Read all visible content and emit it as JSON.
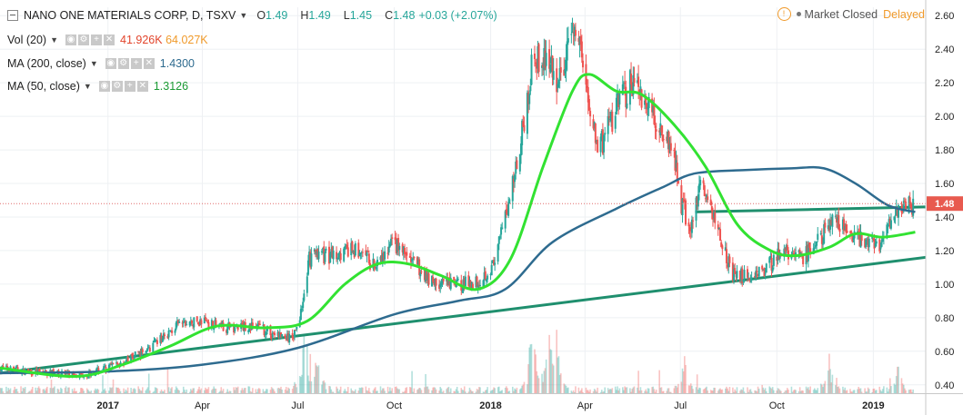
{
  "header": {
    "symbol_title": "NANO ONE MATERIALS CORP, D, TSXV",
    "ohlc": {
      "o_label": "O",
      "o_value": "1.49",
      "h_label": "H",
      "h_value": "1.49",
      "l_label": "L",
      "l_value": "1.45",
      "c_label": "C",
      "c_value": "1.48",
      "change": "+0.03 (+2.07%)"
    },
    "market_status": "Market Closed",
    "data_status": "Delayed"
  },
  "indicators": [
    {
      "label": "Vol (20)",
      "values": [
        "41.926K",
        "64.027K"
      ],
      "colors": [
        "#e2452c",
        "#f09a2b"
      ]
    },
    {
      "label": "MA (200, close)",
      "values": [
        "1.4300"
      ],
      "colors": [
        "#2e6b8f"
      ]
    },
    {
      "label": "MA (50, close)",
      "values": [
        "1.3126"
      ],
      "colors": [
        "#1a9a33"
      ]
    }
  ],
  "chart_data": {
    "type": "candlestick",
    "last_price_label": "1.48",
    "y_ticks": [
      "2.60",
      "2.40",
      "2.20",
      "2.00",
      "1.80",
      "1.60",
      "1.40",
      "1.20",
      "1.00",
      "0.80",
      "0.60",
      "0.40"
    ],
    "ylim": [
      0.35,
      2.65
    ],
    "x_ticks": [
      {
        "label": "2017",
        "bold": true,
        "date": "2017-01-01"
      },
      {
        "label": "Apr",
        "bold": false,
        "date": "2017-04-01"
      },
      {
        "label": "Jul",
        "bold": false,
        "date": "2017-07-01"
      },
      {
        "label": "Oct",
        "bold": false,
        "date": "2017-10-01"
      },
      {
        "label": "2018",
        "bold": true,
        "date": "2018-01-01"
      },
      {
        "label": "Apr",
        "bold": false,
        "date": "2018-04-01"
      },
      {
        "label": "Jul",
        "bold": false,
        "date": "2018-07-01"
      },
      {
        "label": "Oct",
        "bold": false,
        "date": "2018-10-01"
      },
      {
        "label": "2019",
        "bold": true,
        "date": "2019-01-01"
      }
    ],
    "xlim": [
      "2016-09-20",
      "2019-02-20"
    ],
    "price_path": [
      [
        "2016-09-20",
        0.5
      ],
      [
        "2016-10-15",
        0.48
      ],
      [
        "2016-11-10",
        0.47
      ],
      [
        "2016-12-10",
        0.46
      ],
      [
        "2017-01-10",
        0.52
      ],
      [
        "2017-02-10",
        0.62
      ],
      [
        "2017-03-10",
        0.76
      ],
      [
        "2017-04-05",
        0.78
      ],
      [
        "2017-04-25",
        0.74
      ],
      [
        "2017-05-20",
        0.75
      ],
      [
        "2017-06-10",
        0.7
      ],
      [
        "2017-06-25",
        0.67
      ],
      [
        "2017-07-03",
        0.78
      ],
      [
        "2017-07-12",
        1.15
      ],
      [
        "2017-08-05",
        1.18
      ],
      [
        "2017-08-25",
        1.2
      ],
      [
        "2017-09-15",
        1.1
      ],
      [
        "2017-09-30",
        1.25
      ],
      [
        "2017-10-20",
        1.12
      ],
      [
        "2017-11-10",
        1.0
      ],
      [
        "2017-12-05",
        1.0
      ],
      [
        "2017-12-20",
        1.02
      ],
      [
        "2018-01-05",
        1.12
      ],
      [
        "2018-01-20",
        1.55
      ],
      [
        "2018-02-03",
        2.0
      ],
      [
        "2018-02-12",
        2.4
      ],
      [
        "2018-02-25",
        2.3
      ],
      [
        "2018-03-10",
        2.2
      ],
      [
        "2018-03-20",
        2.55
      ],
      [
        "2018-03-28",
        2.4
      ],
      [
        "2018-04-05",
        2.05
      ],
      [
        "2018-04-15",
        1.8
      ],
      [
        "2018-05-01",
        2.05
      ],
      [
        "2018-05-15",
        2.2
      ],
      [
        "2018-05-30",
        2.1
      ],
      [
        "2018-06-15",
        1.9
      ],
      [
        "2018-06-25",
        1.8
      ],
      [
        "2018-07-01",
        1.5
      ],
      [
        "2018-07-10",
        1.35
      ],
      [
        "2018-07-20",
        1.6
      ],
      [
        "2018-08-05",
        1.35
      ],
      [
        "2018-08-20",
        1.05
      ],
      [
        "2018-09-05",
        1.05
      ],
      [
        "2018-09-20",
        1.1
      ],
      [
        "2018-10-10",
        1.2
      ],
      [
        "2018-10-25",
        1.15
      ],
      [
        "2018-11-10",
        1.25
      ],
      [
        "2018-11-25",
        1.4
      ],
      [
        "2018-12-10",
        1.3
      ],
      [
        "2018-12-25",
        1.25
      ],
      [
        "2019-01-10",
        1.25
      ],
      [
        "2019-01-25",
        1.45
      ],
      [
        "2019-02-10",
        1.48
      ]
    ],
    "ma200": [
      [
        "2016-09-20",
        0.47
      ],
      [
        "2017-01-01",
        0.48
      ],
      [
        "2017-04-01",
        0.52
      ],
      [
        "2017-07-01",
        0.62
      ],
      [
        "2017-10-01",
        0.82
      ],
      [
        "2017-12-01",
        0.9
      ],
      [
        "2018-01-15",
        0.97
      ],
      [
        "2018-03-01",
        1.25
      ],
      [
        "2018-05-01",
        1.45
      ],
      [
        "2018-06-15",
        1.58
      ],
      [
        "2018-07-15",
        1.66
      ],
      [
        "2018-09-01",
        1.68
      ],
      [
        "2018-10-15",
        1.69
      ],
      [
        "2018-11-15",
        1.69
      ],
      [
        "2018-12-15",
        1.6
      ],
      [
        "2019-01-15",
        1.47
      ],
      [
        "2019-02-10",
        1.43
      ]
    ],
    "ma50": [
      [
        "2016-09-20",
        0.5
      ],
      [
        "2016-12-01",
        0.45
      ],
      [
        "2017-01-15",
        0.52
      ],
      [
        "2017-03-01",
        0.63
      ],
      [
        "2017-04-15",
        0.75
      ],
      [
        "2017-06-01",
        0.74
      ],
      [
        "2017-07-10",
        0.78
      ],
      [
        "2017-08-15",
        1.0
      ],
      [
        "2017-09-15",
        1.12
      ],
      [
        "2017-10-15",
        1.12
      ],
      [
        "2017-11-15",
        1.05
      ],
      [
        "2017-12-20",
        0.97
      ],
      [
        "2018-01-20",
        1.15
      ],
      [
        "2018-02-20",
        1.7
      ],
      [
        "2018-03-20",
        2.15
      ],
      [
        "2018-04-05",
        2.25
      ],
      [
        "2018-05-01",
        2.15
      ],
      [
        "2018-05-25",
        2.13
      ],
      [
        "2018-06-25",
        1.95
      ],
      [
        "2018-07-25",
        1.7
      ],
      [
        "2018-08-25",
        1.35
      ],
      [
        "2018-09-25",
        1.2
      ],
      [
        "2018-10-20",
        1.17
      ],
      [
        "2018-11-20",
        1.22
      ],
      [
        "2018-12-15",
        1.3
      ],
      [
        "2019-01-10",
        1.28
      ],
      [
        "2019-02-10",
        1.31
      ]
    ],
    "trendlines": [
      {
        "from": [
          "2016-09-20",
          0.47
        ],
        "to": [
          "2019-02-20",
          1.16
        ]
      },
      {
        "from": [
          "2018-07-15",
          1.43
        ],
        "to": [
          "2019-02-20",
          1.46
        ]
      }
    ],
    "volume_spikes": [
      [
        "2017-07-08",
        0.75
      ],
      [
        "2017-07-20",
        0.45
      ],
      [
        "2018-02-10",
        0.9
      ],
      [
        "2018-02-25",
        0.65
      ],
      [
        "2018-03-05",
        0.55
      ],
      [
        "2018-07-05",
        0.35
      ],
      [
        "2018-11-20",
        0.4
      ],
      [
        "2019-01-25",
        0.25
      ]
    ]
  },
  "colors": {
    "up": "#26a69a",
    "down": "#ef5350",
    "ma50": "#32e232",
    "ma200": "#2e6b8f",
    "trend": "#1f8f6e",
    "last_price_line": "#e06c6c",
    "grid": "#eef0f3"
  }
}
